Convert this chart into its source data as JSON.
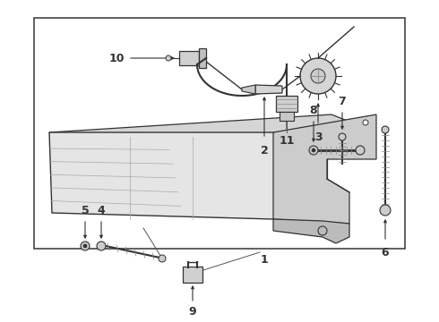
{
  "bg_color": "#ffffff",
  "border_color": "#444444",
  "line_color": "#333333",
  "gray_fill": "#c8c8c8",
  "light_fill": "#e8e8e8",
  "white_fill": "#ffffff",
  "border": [
    0.08,
    0.14,
    0.87,
    0.8
  ],
  "figsize": [
    4.9,
    3.6
  ],
  "dpi": 100
}
